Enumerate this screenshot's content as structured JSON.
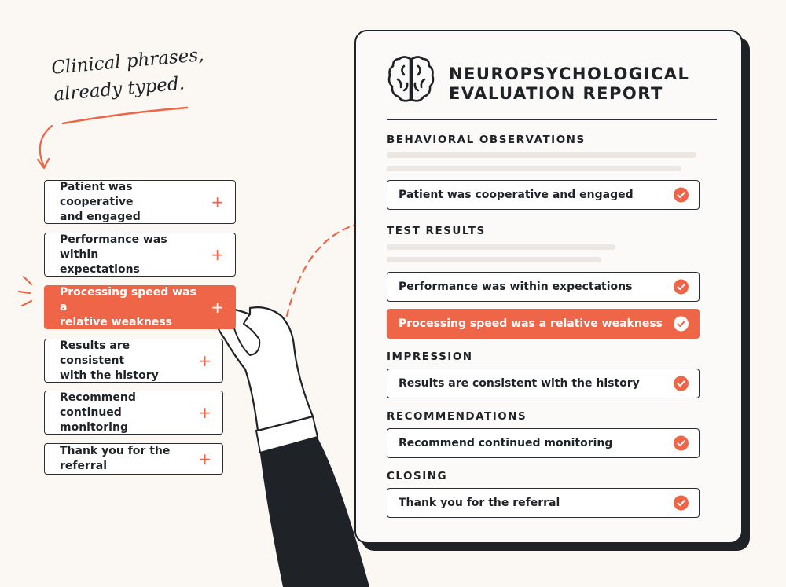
{
  "tagline": {
    "line1": "Clinical phrases,",
    "line2": "already typed."
  },
  "phrase_library": [
    {
      "line1": "Patient was cooperative",
      "line2": "and engaged",
      "highlighted": false
    },
    {
      "line1": "Performance was within",
      "line2": "expectations",
      "highlighted": false
    },
    {
      "line1": "Processing speed was a",
      "line2": "relative weakness",
      "highlighted": true
    },
    {
      "line1": "Results are consistent",
      "line2": "with the history",
      "highlighted": false
    },
    {
      "line1": "Recommend continued",
      "line2": "monitoring",
      "highlighted": false
    },
    {
      "line1": "Thank you for the referral",
      "line2": "",
      "highlighted": false
    }
  ],
  "report": {
    "title_line1": "NEUROPSYCHOLOGICAL",
    "title_line2": "EVALUATION REPORT",
    "sections": {
      "behavioral": "BEHAVIORAL OBSERVATIONS",
      "test_results": "TEST RESULTS",
      "impression": "IMPRESSION",
      "recommendations": "RECOMMENDATIONS",
      "closing": "CLOSING"
    },
    "items": {
      "cooperative": "Patient was cooperative and engaged",
      "performance": "Performance was within expectations",
      "processing": "Processing speed was a relative weakness",
      "consistent": "Results are consistent with the history",
      "monitoring": "Recommend continued monitoring",
      "referral": "Thank you for the referral"
    }
  },
  "icons": {
    "add": "plus-icon",
    "inserted": "check-circle-icon",
    "report": "brain-icon"
  },
  "colors": {
    "accent": "#ee6548",
    "ink": "#1f2328",
    "background": "#fbf8f4"
  }
}
